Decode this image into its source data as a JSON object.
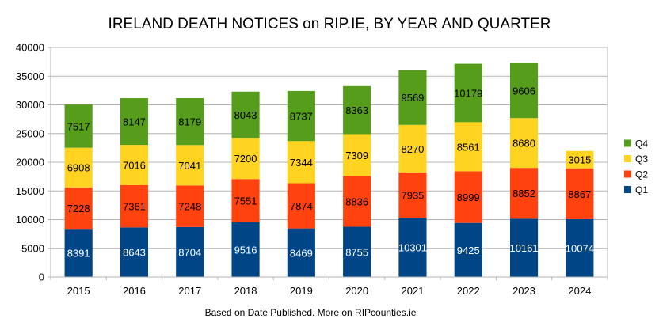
{
  "chart_data": {
    "type": "bar",
    "stacked": true,
    "title": "IRELAND DEATH NOTICES on RIP.IE, BY YEAR AND QUARTER",
    "footnote": "Based on Date Published. More on RIPcounties.ie",
    "categories": [
      "2015",
      "2016",
      "2017",
      "2018",
      "2019",
      "2020",
      "2021",
      "2022",
      "2023",
      "2024"
    ],
    "series": [
      {
        "name": "Q1",
        "color": "#004586",
        "label_color": "#ffffff",
        "values": [
          8391,
          8643,
          8704,
          9516,
          8469,
          8755,
          10301,
          9425,
          10161,
          10074
        ]
      },
      {
        "name": "Q2",
        "color": "#ff420e",
        "label_color": "#000000",
        "values": [
          7228,
          7361,
          7248,
          7551,
          7874,
          8836,
          7935,
          8999,
          8852,
          8867
        ]
      },
      {
        "name": "Q3",
        "color": "#ffd320",
        "label_color": "#000000",
        "values": [
          6908,
          7016,
          7041,
          7200,
          7344,
          7309,
          8270,
          8561,
          8680,
          3015
        ]
      },
      {
        "name": "Q4",
        "color": "#579d1c",
        "label_color": "#000000",
        "values": [
          7517,
          8147,
          8179,
          8043,
          8737,
          8363,
          9569,
          10179,
          9606,
          null
        ]
      }
    ],
    "ylim": [
      0,
      40000
    ],
    "yticks": [
      "0",
      "5000",
      "10000",
      "15000",
      "20000",
      "25000",
      "30000",
      "35000",
      "40000"
    ],
    "grid": true,
    "legend_position": "right",
    "legend_order": [
      "Q4",
      "Q3",
      "Q2",
      "Q1"
    ],
    "colors": {
      "grid": "#b3b3b3",
      "axis": "#b3b3b3"
    }
  }
}
